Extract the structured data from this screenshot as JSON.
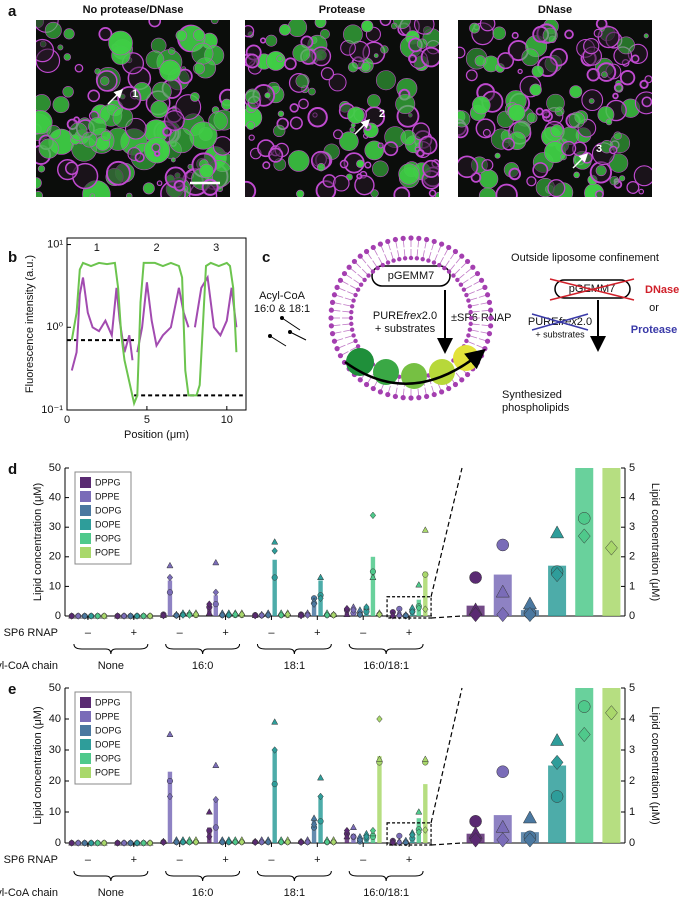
{
  "figure": {
    "panel_labels": [
      "a",
      "b",
      "c",
      "d",
      "e"
    ],
    "a": {
      "titles": [
        "No protease/DNase",
        "Protease",
        "DNase"
      ],
      "arrow_labels": [
        "1",
        "2",
        "3"
      ]
    },
    "c": {
      "plasmid": "pGEMM7",
      "pure": [
        "PURE",
        "frex",
        "2.0"
      ],
      "substrates": "+ substrates",
      "sp6": "±SP6 RNAP",
      "acyl": [
        "Acyl-CoA",
        "16:0 & 18:1"
      ],
      "synth": [
        "Synthesized",
        "phospholipids"
      ],
      "outside_title": "Outside liposome confinement",
      "outside_plasmid": "pGEMM7",
      "dnase": "DNase",
      "or": "or",
      "outside_pure": [
        "PURE",
        "frex",
        "2.0"
      ],
      "outside_substrates": "+ substrates",
      "protease": "Protease"
    }
  },
  "chart_data": [
    {
      "type": "line",
      "xlabel": "Position (μm)",
      "ylabel": "Fluorescence intensity (a.u.)",
      "xlim": [
        0,
        11.2
      ],
      "ylim": [
        0.1,
        12
      ],
      "log_y": true,
      "xticks": [
        0,
        5,
        10
      ],
      "yticks": [
        {
          "value": 0.1,
          "label": "10⁻¹"
        },
        {
          "value": 1,
          "label": "10⁰"
        },
        {
          "value": 10,
          "label": "10¹"
        }
      ],
      "profile_labels": [
        "1",
        "2",
        "3"
      ],
      "series": [
        {
          "color": "#a24bb0",
          "x": [
            0.3,
            0.6,
            0.8,
            1,
            1.3,
            1.6,
            2,
            2.4,
            2.8,
            3.1,
            3.3,
            3.6,
            3.9,
            4.1,
            null,
            4.4,
            4.7,
            5,
            5.3,
            5.6,
            6,
            6.5,
            7,
            7.3,
            7.6,
            null,
            8,
            8.4,
            8.8,
            9.2,
            9.6,
            10,
            10.3,
            10.6
          ],
          "values": [
            0.3,
            0.5,
            2.5,
            4,
            1.5,
            1,
            0.9,
            1.2,
            0.8,
            3,
            1.2,
            0.5,
            0.8,
            0.4,
            null,
            0.5,
            1,
            3.5,
            1.2,
            0.6,
            0.8,
            1,
            3,
            1.5,
            1,
            null,
            1,
            3,
            4,
            1,
            0.8,
            1.2,
            3,
            1
          ]
        },
        {
          "color": "#6cc44e",
          "x": [
            0.3,
            0.6,
            0.8,
            1,
            1.5,
            2,
            2.5,
            3,
            3.2,
            3.4,
            3.6,
            4.2,
            4.4,
            4.6,
            4.8,
            5.5,
            6,
            6.5,
            7,
            7.2,
            7.4,
            7.6,
            8.1,
            8.3,
            8.5,
            8.7,
            9,
            9.5,
            10,
            10.2,
            10.4,
            10.6
          ],
          "values": [
            0.7,
            1.5,
            5,
            6,
            5.5,
            6,
            5.8,
            6,
            3,
            0.8,
            0.4,
            0.12,
            0.15,
            2,
            6,
            6,
            5.5,
            6,
            5.5,
            4,
            0.3,
            0.15,
            0.15,
            0.2,
            1,
            5.5,
            6,
            5.5,
            6,
            5.5,
            3,
            0.5
          ]
        }
      ],
      "thresholds": [
        {
          "x": [
            0,
            4.2
          ],
          "y": 0.7
        },
        {
          "x": [
            4.2,
            11
          ],
          "y": 0.15
        }
      ]
    },
    {
      "type": "bar",
      "ylabel": "Lipid concentration (μM)",
      "ylim": [
        0,
        50
      ],
      "yticks": [
        0,
        10,
        20,
        30,
        40,
        50
      ],
      "groups": [
        "None",
        "16:0",
        "18:1",
        "16:0/18:1"
      ],
      "conditions": [
        "–",
        "+"
      ],
      "condition_label": "SP6 RNAP",
      "group_label": "Acyl-CoA chain",
      "markers": [
        "circle",
        "triangle",
        "diamond"
      ],
      "legend": "upper left",
      "inset": {
        "ylim": [
          0,
          5
        ],
        "yticks": [
          0,
          1,
          2,
          3,
          4,
          5
        ],
        "ylabel": "Lipid concentration (μM)"
      },
      "series": [
        {
          "name": "DPPG",
          "color": "#5a2a72",
          "values": [
            0,
            0,
            0.3,
            2.5,
            0.2,
            0.3,
            1.5,
            0.35
          ],
          "points": [
            [
              0,
              0,
              0
            ],
            [
              0,
              0,
              0
            ],
            [
              0.5,
              0.2,
              0.1
            ],
            [
              3,
              1,
              4
            ],
            [
              0.3,
              0.2,
              0.1
            ],
            [
              0.5,
              0.3,
              0.1
            ],
            [
              2,
              0.5,
              2.5
            ],
            [
              1.3,
              0.2,
              0.05
            ]
          ]
        },
        {
          "name": "DPPE",
          "color": "#7a6cb8",
          "values": [
            0,
            0,
            12,
            7,
            0.3,
            0.5,
            2,
            1.4
          ],
          "points": [
            [
              0,
              0,
              0
            ],
            [
              0,
              0,
              0
            ],
            [
              8,
              17,
              13
            ],
            [
              4,
              18,
              8
            ],
            [
              0.2,
              0.5,
              0.2
            ],
            [
              0.5,
              1,
              0.3
            ],
            [
              1,
              3,
              2
            ],
            [
              2.4,
              0.8,
              0.05
            ]
          ]
        },
        {
          "name": "DOPG",
          "color": "#4a78a0",
          "values": [
            0,
            0,
            0.3,
            0.5,
            0.5,
            5,
            1,
            0.2
          ],
          "points": [
            [
              0,
              0,
              0
            ],
            [
              0,
              0,
              0
            ],
            [
              0.2,
              0.5,
              0.2
            ],
            [
              0.3,
              1,
              0.3
            ],
            [
              0.3,
              1,
              0.3
            ],
            [
              6,
              5,
              4
            ],
            [
              0.5,
              2,
              0.5
            ],
            [
              0.1,
              0.4,
              0.05
            ]
          ]
        },
        {
          "name": "DOPE",
          "color": "#2e9d9a",
          "values": [
            0,
            0,
            0.5,
            0.5,
            19,
            12,
            2.5,
            1.7
          ],
          "points": [
            [
              0,
              0,
              0
            ],
            [
              0,
              0,
              0
            ],
            [
              0.5,
              1,
              0.3
            ],
            [
              0.3,
              1,
              0.3
            ],
            [
              13,
              25,
              22
            ],
            [
              7,
              13,
              6
            ],
            [
              1.5,
              3,
              3
            ],
            [
              1.5,
              2.8,
              1.4
            ]
          ]
        },
        {
          "name": "POPG",
          "color": "#4fc98b",
          "values": [
            0,
            0,
            0.5,
            0.5,
            0.5,
            0.5,
            20,
            5.5
          ],
          "points": [
            [
              0,
              0,
              0
            ],
            [
              0,
              0,
              0
            ],
            [
              0.5,
              1,
              0.3
            ],
            [
              0.3,
              1,
              0.5
            ],
            [
              0.3,
              1,
              0.3
            ],
            [
              0.3,
              1,
              0.3
            ],
            [
              15,
              13,
              34
            ],
            [
              3.3,
              10.5,
              2.7
            ]
          ]
        },
        {
          "name": "POPE",
          "color": "#a9d86b",
          "values": [
            0,
            0,
            0.5,
            0.5,
            0.5,
            0.5,
            0.5,
            15
          ],
          "points": [
            [
              0,
              0,
              0
            ],
            [
              0,
              0,
              0
            ],
            [
              0.3,
              1,
              0.5
            ],
            [
              0.3,
              1,
              0.5
            ],
            [
              0.3,
              1,
              0.5
            ],
            [
              0.3,
              0.5,
              0.3
            ],
            [
              0.5,
              1,
              0.5
            ],
            [
              14,
              29,
              2.3
            ]
          ]
        }
      ]
    },
    {
      "type": "bar",
      "ylabel": "Lipid concentration (μM)",
      "ylim": [
        0,
        50
      ],
      "yticks": [
        0,
        10,
        20,
        30,
        40,
        50
      ],
      "groups": [
        "None",
        "16:0",
        "18:1",
        "16:0/18:1"
      ],
      "conditions": [
        "–",
        "+"
      ],
      "condition_label": "SP6 RNAP",
      "group_label": "Acyl-CoA chain",
      "markers": [
        "circle",
        "triangle",
        "diamond"
      ],
      "legend": "upper left",
      "inset": {
        "ylim": [
          0,
          5
        ],
        "yticks": [
          0,
          1,
          2,
          3,
          4,
          5
        ],
        "ylabel": "Lipid concentration (μM)"
      },
      "series": [
        {
          "name": "DPPG",
          "color": "#5a2a72",
          "values": [
            0,
            0,
            0.3,
            5,
            0.3,
            0.3,
            3,
            0.3
          ],
          "points": [
            [
              0,
              0,
              0
            ],
            [
              0,
              0,
              0
            ],
            [
              0.3,
              0.5,
              0.2
            ],
            [
              4,
              10,
              2
            ],
            [
              0.3,
              0.5,
              0.2
            ],
            [
              0.3,
              0.5,
              0.2
            ],
            [
              3,
              2,
              4
            ],
            [
              0.7,
              0.3,
              0.1
            ]
          ]
        },
        {
          "name": "DPPE",
          "color": "#7a6cb8",
          "values": [
            0,
            0,
            23,
            14,
            0.5,
            0.5,
            3,
            0.9
          ],
          "points": [
            [
              0,
              0,
              0
            ],
            [
              0,
              0,
              0
            ],
            [
              20,
              35,
              15
            ],
            [
              5,
              25,
              14
            ],
            [
              0.3,
              1,
              0.3
            ],
            [
              0.3,
              1,
              0.3
            ],
            [
              2,
              5,
              2
            ],
            [
              2.3,
              0.5,
              0.1
            ]
          ]
        },
        {
          "name": "DOPG",
          "color": "#4a78a0",
          "values": [
            0,
            0,
            0.5,
            0.5,
            0.5,
            8,
            1,
            0.35
          ],
          "points": [
            [
              0,
              0,
              0
            ],
            [
              0,
              0,
              0
            ],
            [
              0.3,
              1,
              0.3
            ],
            [
              0.3,
              1,
              0.3
            ],
            [
              0.3,
              1,
              0.3
            ],
            [
              5,
              8,
              6
            ],
            [
              0.5,
              2,
              1
            ],
            [
              0.2,
              0.8,
              0.1
            ]
          ]
        },
        {
          "name": "DOPE",
          "color": "#2e9d9a",
          "values": [
            0,
            0,
            0.5,
            0.5,
            30,
            15,
            2,
            2.5
          ],
          "points": [
            [
              0,
              0,
              0
            ],
            [
              0,
              0,
              0
            ],
            [
              0.3,
              1,
              0.3
            ],
            [
              0.3,
              1,
              0.3
            ],
            [
              19,
              39,
              30
            ],
            [
              7,
              21,
              15
            ],
            [
              1.5,
              3,
              2
            ],
            [
              1.5,
              3.3,
              2.6
            ]
          ]
        },
        {
          "name": "POPG",
          "color": "#4fc98b",
          "values": [
            0,
            0,
            0.5,
            0.5,
            0.5,
            0.5,
            3,
            8
          ],
          "points": [
            [
              0,
              0,
              0
            ],
            [
              0,
              0,
              0
            ],
            [
              0.3,
              1,
              0.3
            ],
            [
              0.3,
              1,
              0.3
            ],
            [
              0.3,
              1,
              0.3
            ],
            [
              0.3,
              1,
              0.3
            ],
            [
              2,
              3,
              4
            ],
            [
              4.4,
              10,
              3.5
            ]
          ]
        },
        {
          "name": "POPE",
          "color": "#a9d86b",
          "values": [
            0,
            0,
            0.5,
            0.5,
            0.5,
            0.5,
            28,
            19
          ],
          "points": [
            [
              0,
              0,
              0
            ],
            [
              0,
              0,
              0
            ],
            [
              0.3,
              1,
              0.3
            ],
            [
              0.3,
              1,
              0.3
            ],
            [
              0.3,
              1,
              0.3
            ],
            [
              0.3,
              1,
              0.3
            ],
            [
              26,
              27,
              40
            ],
            [
              26,
              27,
              4.2
            ]
          ]
        }
      ]
    }
  ]
}
